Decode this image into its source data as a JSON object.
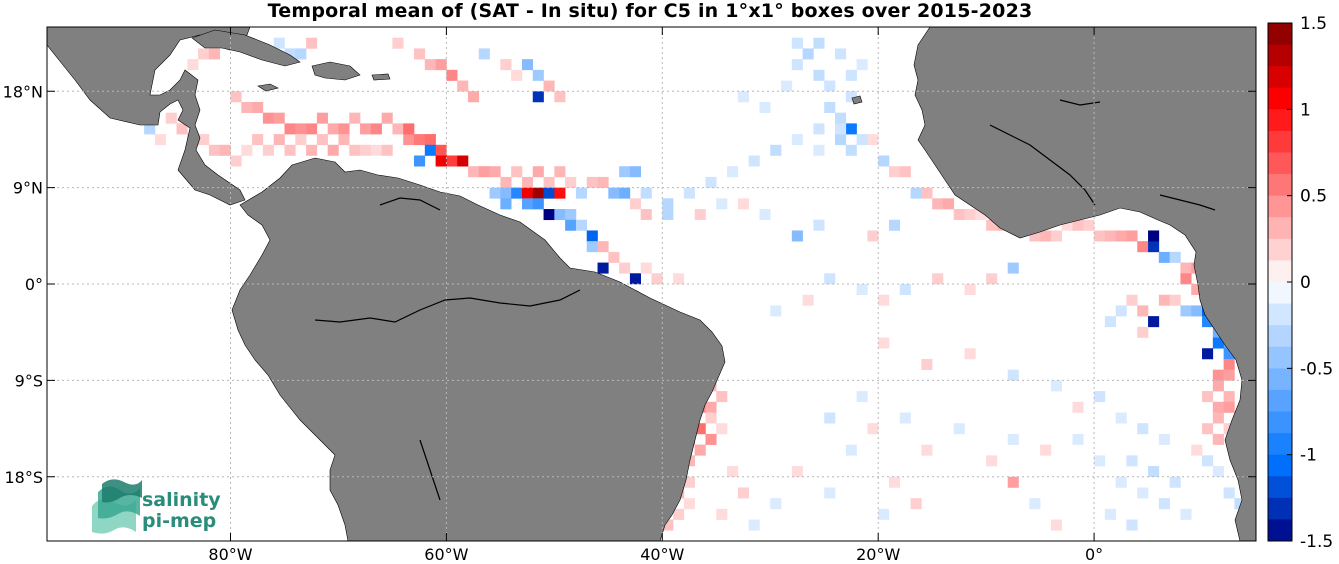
{
  "title": "Temporal mean of (SAT - In situ) for C5 in 1°x1° boxes over 2015-2023",
  "map": {
    "lon_range": [
      -97,
      15
    ],
    "lat_range": [
      -24,
      24
    ],
    "lon_ticks": [
      {
        "value": -80,
        "label": "80°W"
      },
      {
        "value": -60,
        "label": "60°W"
      },
      {
        "value": -40,
        "label": "40°W"
      },
      {
        "value": -20,
        "label": "20°W"
      },
      {
        "value": 0,
        "label": "0°"
      }
    ],
    "lat_ticks": [
      {
        "value": 18,
        "label": "18°N"
      },
      {
        "value": 9,
        "label": "9°N"
      },
      {
        "value": 0,
        "label": "0°"
      },
      {
        "value": -9,
        "label": "9°S"
      },
      {
        "value": -18,
        "label": "18°S"
      }
    ],
    "land_color": "#808080",
    "ocean_color": "#ffffff",
    "grid": true
  },
  "colorbar": {
    "range": [
      -1.5,
      1.5
    ],
    "ticks": [
      {
        "value": 1.5,
        "label": "1.5"
      },
      {
        "value": 1,
        "label": "1"
      },
      {
        "value": 0.5,
        "label": "0.5"
      },
      {
        "value": 0,
        "label": "0"
      },
      {
        "value": -0.5,
        "label": "-0.5"
      },
      {
        "value": -1,
        "label": "-1"
      },
      {
        "value": -1.5,
        "label": "-1.5"
      }
    ],
    "levels": 24
  },
  "logo": {
    "line1": "salinity",
    "line2": "pi-mep"
  },
  "chart_data": {
    "type": "heatmap",
    "title": "Temporal mean of (SAT - In situ) for C5 in 1°x1° boxes over 2015-2023",
    "xlabel": "",
    "ylabel": "",
    "xlim": [
      -97,
      15
    ],
    "ylim": [
      -24,
      24
    ],
    "zlim": [
      -1.5,
      1.5
    ],
    "cells": [
      [
        -90,
        22,
        0.2
      ],
      [
        -89,
        22,
        0.25
      ],
      [
        -88,
        22,
        0.15
      ],
      [
        -83,
        21,
        0.2
      ],
      [
        -82,
        21,
        0.3
      ],
      [
        -84,
        20,
        0.15
      ],
      [
        -76,
        22,
        -0.2
      ],
      [
        -75,
        21,
        -0.25
      ],
      [
        -74,
        21,
        -0.3
      ],
      [
        -73,
        22,
        0.25
      ],
      [
        -65,
        22,
        0.2
      ],
      [
        -63,
        21,
        0.25
      ],
      [
        -62,
        20,
        0.3
      ],
      [
        -61,
        20,
        0.4
      ],
      [
        -60,
        19,
        0.5
      ],
      [
        -59,
        18,
        0.3
      ],
      [
        -58,
        17,
        0.35
      ],
      [
        -57,
        21,
        -0.3
      ],
      [
        -55,
        20,
        0.2
      ],
      [
        -54,
        19,
        0.15
      ],
      [
        -53,
        20,
        -0.5
      ],
      [
        -52,
        19,
        -0.4
      ],
      [
        -51,
        18,
        0.3
      ],
      [
        -50,
        17,
        0.25
      ],
      [
        -52,
        17,
        -1.3
      ],
      [
        -80,
        17,
        0.25
      ],
      [
        -79,
        16,
        0.3
      ],
      [
        -78,
        16,
        0.35
      ],
      [
        -77,
        15,
        0.45
      ],
      [
        -76,
        15,
        0.4
      ],
      [
        -75,
        14,
        0.5
      ],
      [
        -74,
        14,
        0.45
      ],
      [
        -73,
        14,
        0.5
      ],
      [
        -72,
        15,
        0.4
      ],
      [
        -71,
        14,
        0.35
      ],
      [
        -70,
        14,
        0.45
      ],
      [
        -69,
        15,
        0.3
      ],
      [
        -68,
        14,
        0.4
      ],
      [
        -67,
        14,
        0.5
      ],
      [
        -66,
        15,
        0.35
      ],
      [
        -65,
        14,
        0.3
      ],
      [
        -64,
        13,
        0.45
      ],
      [
        -63,
        13,
        0.55
      ],
      [
        -62,
        13,
        0.6
      ],
      [
        -61,
        12,
        0.7
      ],
      [
        -60,
        11,
        0.8
      ],
      [
        -61,
        11,
        1.1
      ],
      [
        -62,
        12,
        -1.0
      ],
      [
        -63,
        11,
        -0.8
      ],
      [
        -59,
        11,
        1.2
      ],
      [
        -64,
        14,
        0.6
      ],
      [
        -86,
        15,
        0.2
      ],
      [
        -85,
        14,
        0.25
      ],
      [
        -84,
        13,
        0.3
      ],
      [
        -83,
        13,
        0.2
      ],
      [
        -82,
        12,
        0.25
      ],
      [
        -81,
        12,
        0.3
      ],
      [
        -80,
        11,
        0.2
      ],
      [
        -79,
        12,
        0.15
      ],
      [
        -78,
        13,
        0.25
      ],
      [
        -77,
        12,
        0.2
      ],
      [
        -76,
        13,
        0.3
      ],
      [
        -75,
        12,
        0.25
      ],
      [
        -74,
        13,
        0.2
      ],
      [
        -73,
        12,
        0.3
      ],
      [
        -72,
        13,
        0.25
      ],
      [
        -71,
        12,
        0.35
      ],
      [
        -70,
        13,
        0.3
      ],
      [
        -69,
        12,
        0.25
      ],
      [
        -68,
        12,
        0.2
      ],
      [
        -67,
        12,
        0.15
      ],
      [
        -66,
        12,
        0.25
      ],
      [
        -88,
        14,
        -0.3
      ],
      [
        -87,
        13,
        0.15
      ],
      [
        -58,
        10,
        0.3
      ],
      [
        -57,
        10,
        0.4
      ],
      [
        -56,
        10,
        0.35
      ],
      [
        -55,
        9,
        0.3
      ],
      [
        -54,
        10,
        0.25
      ],
      [
        -53,
        9,
        0.3
      ],
      [
        -52,
        10,
        0.35
      ],
      [
        -51,
        9,
        0.25
      ],
      [
        -50,
        10,
        0.3
      ],
      [
        -49,
        9,
        0.2
      ],
      [
        -56,
        8,
        -0.4
      ],
      [
        -55,
        8,
        -0.5
      ],
      [
        -54,
        8,
        -0.9
      ],
      [
        -53,
        8,
        1.1
      ],
      [
        -52,
        8,
        1.4
      ],
      [
        -51,
        8,
        -1.2
      ],
      [
        -50,
        8,
        1.0
      ],
      [
        -55,
        7,
        -0.6
      ],
      [
        -53,
        7,
        -0.7
      ],
      [
        -52,
        7,
        -0.8
      ],
      [
        -51,
        6,
        -1.5
      ],
      [
        -50,
        6,
        -0.5
      ],
      [
        -49,
        6,
        -0.4
      ],
      [
        -49,
        5,
        -0.7
      ],
      [
        -48,
        5,
        -0.3
      ],
      [
        -47,
        4,
        -1.1
      ],
      [
        -46,
        3,
        0.3
      ],
      [
        -47,
        3,
        -0.4
      ],
      [
        -46,
        1,
        -1.4
      ],
      [
        -45,
        2,
        0.25
      ],
      [
        -44,
        1,
        0.2
      ],
      [
        -43,
        0,
        -1.4
      ],
      [
        -42,
        1,
        0.15
      ],
      [
        -41,
        0,
        0.2
      ],
      [
        -39,
        0,
        0.15
      ],
      [
        -45,
        8,
        -0.5
      ],
      [
        -44,
        8,
        -0.6
      ],
      [
        -43,
        7,
        0.2
      ],
      [
        -42,
        6,
        0.25
      ],
      [
        -40,
        6,
        -0.3
      ],
      [
        -46,
        9,
        0.3
      ],
      [
        -47,
        9,
        0.25
      ],
      [
        -48,
        8,
        -0.3
      ],
      [
        -44,
        10,
        -0.4
      ],
      [
        -43,
        10,
        -0.5
      ],
      [
        -24,
        13,
        -0.3
      ],
      [
        -23,
        12,
        -0.25
      ],
      [
        -23,
        14,
        -1.0
      ],
      [
        -22,
        13,
        -0.2
      ],
      [
        -24,
        14,
        -0.2
      ],
      [
        -21,
        13,
        0.15
      ],
      [
        -20,
        11,
        -0.3
      ],
      [
        -19,
        10,
        0.2
      ],
      [
        -18,
        10,
        0.25
      ],
      [
        -17,
        8,
        -0.3
      ],
      [
        -16,
        8,
        0.25
      ],
      [
        -15,
        7,
        0.3
      ],
      [
        -14,
        7,
        0.35
      ],
      [
        -13,
        6,
        0.25
      ],
      [
        -12,
        6,
        0.2
      ],
      [
        -11,
        6,
        0.15
      ],
      [
        -10,
        5,
        0.25
      ],
      [
        -9,
        5,
        0.3
      ],
      [
        -8,
        5,
        0.2
      ],
      [
        -7,
        5,
        0.15
      ],
      [
        -6,
        4,
        0.25
      ],
      [
        -5,
        4,
        0.3
      ],
      [
        -4,
        4,
        0.2
      ],
      [
        -3,
        5,
        0.15
      ],
      [
        -2,
        5,
        0.25
      ],
      [
        -1,
        5,
        0.2
      ],
      [
        0,
        4,
        0.25
      ],
      [
        1,
        4,
        0.3
      ],
      [
        2,
        4,
        0.35
      ],
      [
        3,
        4,
        0.4
      ],
      [
        4,
        3,
        0.5
      ],
      [
        5,
        3,
        -1.3
      ],
      [
        6,
        2,
        -0.6
      ],
      [
        7,
        2,
        -0.3
      ],
      [
        5,
        4,
        -1.5
      ],
      [
        8,
        1,
        0.3
      ],
      [
        9,
        1,
        0.4
      ],
      [
        8,
        0,
        0.5
      ],
      [
        9,
        -1,
        0.35
      ],
      [
        10,
        0,
        0.3
      ],
      [
        11,
        -1,
        0.25
      ],
      [
        6,
        -2,
        0.3
      ],
      [
        7,
        -2,
        0.2
      ],
      [
        8,
        -3,
        -0.4
      ],
      [
        9,
        -3,
        -0.5
      ],
      [
        10,
        -3,
        -1.1
      ],
      [
        11,
        -4,
        -1.3
      ],
      [
        10,
        -4,
        -0.9
      ],
      [
        11,
        -5,
        -0.6
      ],
      [
        12,
        -6,
        -0.7
      ],
      [
        11,
        -6,
        -1.0
      ],
      [
        10,
        -7,
        -1.4
      ],
      [
        12,
        -7,
        -0.8
      ],
      [
        12,
        -8,
        0.5
      ],
      [
        11,
        -9,
        0.45
      ],
      [
        12,
        -9,
        0.4
      ],
      [
        11,
        -10,
        0.35
      ],
      [
        12,
        -11,
        0.3
      ],
      [
        11,
        -12,
        0.35
      ],
      [
        10,
        -11,
        0.25
      ],
      [
        12,
        -12,
        0.4
      ],
      [
        11,
        -13,
        0.3
      ],
      [
        10,
        -14,
        0.25
      ],
      [
        11,
        -15,
        0.3
      ],
      [
        12,
        -14,
        0.2
      ],
      [
        9,
        -16,
        0.15
      ],
      [
        10,
        -17,
        -0.2
      ],
      [
        11,
        -18,
        -0.15
      ],
      [
        12,
        -20,
        -0.2
      ],
      [
        13,
        -21,
        -0.25
      ],
      [
        4,
        -3,
        0.3
      ],
      [
        3,
        -2,
        0.2
      ],
      [
        2,
        -3,
        -0.2
      ],
      [
        1,
        -4,
        -0.2
      ],
      [
        5,
        -4,
        -1.4
      ],
      [
        4,
        -5,
        0.2
      ],
      [
        -8,
        1,
        -0.4
      ],
      [
        -10,
        0,
        0.2
      ],
      [
        -12,
        -1,
        0.15
      ],
      [
        -15,
        0,
        0.2
      ],
      [
        -18,
        -1,
        -0.2
      ],
      [
        -20,
        -2,
        0.15
      ],
      [
        -22,
        -1,
        -0.15
      ],
      [
        -25,
        0,
        -0.2
      ],
      [
        -27,
        -2,
        0.15
      ],
      [
        -30,
        -3,
        -0.15
      ],
      [
        -19,
        5,
        -0.3
      ],
      [
        -21,
        4,
        0.2
      ],
      [
        -26,
        5,
        -0.2
      ],
      [
        -28,
        4,
        -0.5
      ],
      [
        -31,
        6,
        -0.15
      ],
      [
        -33,
        7,
        0.15
      ],
      [
        -35,
        7,
        -0.15
      ],
      [
        -37,
        6,
        0.2
      ],
      [
        -38,
        8,
        -0.2
      ],
      [
        -40,
        7,
        -0.3
      ],
      [
        -42,
        8,
        -0.25
      ],
      [
        -36,
        9,
        -0.2
      ],
      [
        -34,
        10,
        -0.15
      ],
      [
        -32,
        11,
        -0.2
      ],
      [
        -30,
        12,
        -0.25
      ],
      [
        -28,
        13,
        -0.15
      ],
      [
        -26,
        14,
        -0.2
      ],
      [
        -25,
        16,
        -0.25
      ],
      [
        -23,
        17,
        -0.2
      ],
      [
        -25,
        18,
        -0.2
      ],
      [
        -26,
        19,
        -0.25
      ],
      [
        -28,
        20,
        -0.2
      ],
      [
        -27,
        21,
        -0.3
      ],
      [
        -26,
        22,
        -0.25
      ],
      [
        -28,
        22,
        -0.2
      ],
      [
        -24,
        21,
        -0.2
      ],
      [
        -29,
        18,
        -0.15
      ],
      [
        -31,
        16,
        -0.15
      ],
      [
        -33,
        17,
        -0.15
      ],
      [
        -22,
        20,
        -0.15
      ],
      [
        -23,
        19,
        -0.2
      ],
      [
        -24,
        15,
        -0.25
      ],
      [
        -26,
        12,
        -0.15
      ],
      [
        -37,
        -8,
        0.3
      ],
      [
        -36,
        -9,
        0.35
      ],
      [
        -37,
        -10,
        0.4
      ],
      [
        -38,
        -11,
        0.45
      ],
      [
        -37,
        -12,
        0.5
      ],
      [
        -36,
        -12,
        0.35
      ],
      [
        -38,
        -13,
        0.55
      ],
      [
        -37,
        -14,
        0.6
      ],
      [
        -36,
        -15,
        0.45
      ],
      [
        -38,
        -15,
        0.4
      ],
      [
        -37,
        -16,
        0.35
      ],
      [
        -38,
        -17,
        0.3
      ],
      [
        -39,
        -18,
        0.25
      ],
      [
        -38,
        -19,
        0.2
      ],
      [
        -39,
        -20,
        0.3
      ],
      [
        -40,
        -21,
        0.25
      ],
      [
        -39,
        -22,
        0.2
      ],
      [
        -40,
        -23,
        0.25
      ],
      [
        -38,
        -21,
        0.15
      ],
      [
        -36,
        -10,
        0.3
      ],
      [
        -35,
        -11,
        0.25
      ],
      [
        -36,
        -13,
        0.2
      ],
      [
        -35,
        -14,
        0.15
      ],
      [
        -34,
        -18,
        0.15
      ],
      [
        -33,
        -20,
        0.2
      ],
      [
        -35,
        -22,
        0.15
      ],
      [
        -32,
        -23,
        -0.15
      ],
      [
        -20,
        -6,
        0.15
      ],
      [
        -16,
        -8,
        0.2
      ],
      [
        -12,
        -7,
        0.15
      ],
      [
        -8,
        -9,
        -0.2
      ],
      [
        -4,
        -10,
        -0.15
      ],
      [
        -2,
        -12,
        0.15
      ],
      [
        0,
        -11,
        -0.2
      ],
      [
        2,
        -13,
        -0.15
      ],
      [
        4,
        -14,
        -0.2
      ],
      [
        6,
        -15,
        -0.15
      ],
      [
        3,
        -17,
        -0.2
      ],
      [
        5,
        -18,
        -0.25
      ],
      [
        7,
        -19,
        -0.2
      ],
      [
        4,
        -20,
        -0.15
      ],
      [
        6,
        -21,
        -0.2
      ],
      [
        8,
        -22,
        -0.15
      ],
      [
        2,
        -19,
        -0.15
      ],
      [
        0,
        -17,
        -0.15
      ],
      [
        -2,
        -15,
        -0.15
      ],
      [
        -5,
        -16,
        0.15
      ],
      [
        -8,
        -15,
        -0.15
      ],
      [
        -10,
        -17,
        0.15
      ],
      [
        -13,
        -14,
        -0.15
      ],
      [
        -16,
        -16,
        0.15
      ],
      [
        -18,
        -13,
        -0.15
      ],
      [
        -21,
        -14,
        0.15
      ],
      [
        -23,
        -16,
        -0.15
      ],
      [
        -25,
        -13,
        -0.2
      ],
      [
        -22,
        -11,
        -0.15
      ],
      [
        -19,
        -19,
        0.15
      ],
      [
        -17,
        -21,
        0.2
      ],
      [
        -20,
        -22,
        -0.15
      ],
      [
        -25,
        -20,
        -0.15
      ],
      [
        -28,
        -18,
        0.15
      ],
      [
        -30,
        -21,
        -0.15
      ],
      [
        -8,
        -19,
        0.4
      ],
      [
        -6,
        -21,
        -0.15
      ],
      [
        -4,
        -23,
        0.15
      ],
      [
        1,
        -22,
        -0.15
      ],
      [
        3,
        -23,
        -0.2
      ]
    ],
    "note_land": "Grey = land"
  }
}
